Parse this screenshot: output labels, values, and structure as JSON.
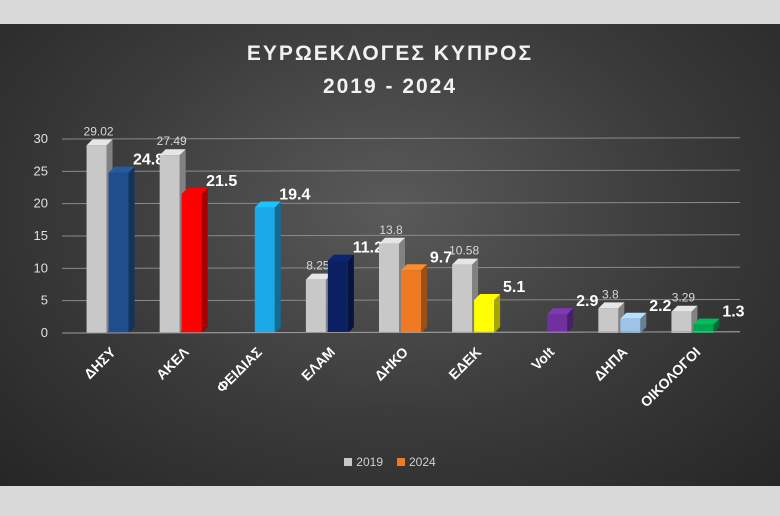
{
  "chart_data": {
    "type": "bar",
    "title": "ΕΥΡΩΕΚΛΟΓΕΣ ΚΥΠΡΟΣ",
    "subtitle": "2019 - 2024",
    "categories": [
      "ΔΗΣΥ",
      "ΑΚΕΛ",
      "ΦΕΙΔΙΑΣ",
      "ΕΛΑΜ",
      "ΔΗΚΟ",
      "ΕΔΕΚ",
      "Volt",
      "ΔΗΠΑ",
      "ΟΙΚΟΛΟΓΟΙ"
    ],
    "series": [
      {
        "name": "2019",
        "values": [
          29.02,
          27.49,
          null,
          8.25,
          13.8,
          10.58,
          null,
          3.8,
          3.29
        ],
        "labels": [
          "29.02",
          "27.49",
          "",
          "8.25",
          "13.8",
          "10.58",
          "",
          "3.8",
          "3.29"
        ],
        "color": "#c8c8c8"
      },
      {
        "name": "2024",
        "values": [
          24.8,
          21.5,
          19.4,
          11.2,
          9.7,
          5.1,
          2.9,
          2.2,
          1.3
        ],
        "labels": [
          "24.8",
          "21.5",
          "19.4",
          "11.2",
          "9.7",
          "5.1",
          "2.9",
          "2.2",
          "1.3"
        ],
        "colors": [
          "#1f4e8c",
          "#ff0000",
          "#19a9e6",
          "#0b1f63",
          "#f07a24",
          "#ffff00",
          "#7030a0",
          "#9dc3e6",
          "#00a550"
        ],
        "legend_color": "#f07a24"
      }
    ],
    "yticks": [
      "0",
      "5",
      "10",
      "15",
      "20",
      "25",
      "30"
    ],
    "ylim": [
      0,
      30
    ],
    "grid": true,
    "legend_position": "bottom"
  }
}
